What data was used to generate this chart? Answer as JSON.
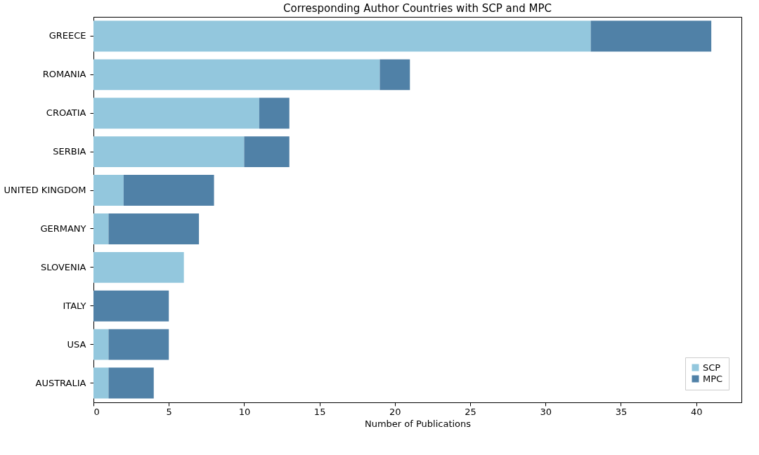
{
  "chart_data": {
    "type": "bar",
    "orientation": "horizontal",
    "stacked": true,
    "title": "Corresponding Author Countries with SCP and MPC",
    "xlabel": "Number of Publications",
    "categories": [
      "GREECE",
      "ROMANIA",
      "CROATIA",
      "SERBIA",
      "UNITED KINGDOM",
      "GERMANY",
      "SLOVENIA",
      "ITALY",
      "USA",
      "AUSTRALIA"
    ],
    "series": [
      {
        "name": "SCP",
        "color": "#93c7dd",
        "values": [
          33,
          19,
          11,
          10,
          2,
          1,
          6,
          0,
          1,
          1
        ]
      },
      {
        "name": "MPC",
        "color": "#5081a7",
        "values": [
          8,
          2,
          2,
          3,
          6,
          6,
          0,
          5,
          4,
          3
        ]
      }
    ],
    "xlim": [
      0,
      43
    ],
    "xticks": [
      0,
      5,
      10,
      15,
      20,
      25,
      30,
      35,
      40
    ],
    "grid": false,
    "legend": "bottom right"
  }
}
